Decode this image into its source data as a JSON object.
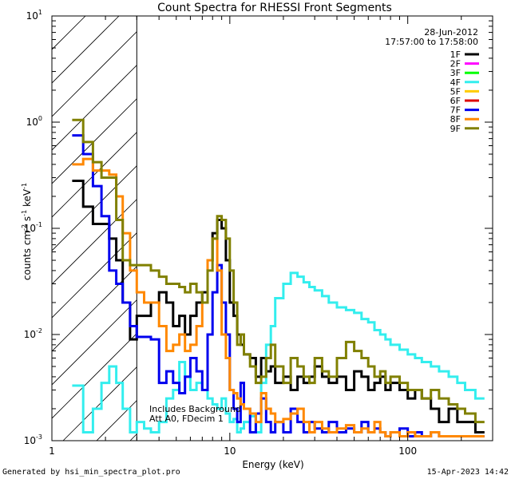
{
  "chart_data": {
    "type": "line",
    "title": "Count Spectra for RHESSI Front Segments",
    "xlabel": "Energy (keV)",
    "ylabel_parts": [
      "counts cm",
      "-2",
      " s",
      "-1",
      " keV",
      "-1"
    ],
    "xscale": "log",
    "yscale": "log",
    "xlim": [
      1,
      300
    ],
    "ylim": [
      0.001,
      10
    ],
    "x_tick_labels": [
      "1",
      "10",
      "100"
    ],
    "y_tick_labels": [
      {
        "base": "10",
        "exp": "-3"
      },
      {
        "base": "10",
        "exp": "-2"
      },
      {
        "base": "10",
        "exp": "-1"
      },
      {
        "base": "10",
        "exp": "0"
      },
      {
        "base": "10",
        "exp": "1"
      }
    ],
    "date": "28-Jun-2012",
    "time_range": "17:57:00 to 17:58:00",
    "hatched_region_below_keV": 3,
    "annotations": [
      "Includes Background",
      "Att A0, FDecim 1"
    ],
    "edges": [
      1.3,
      1.5,
      1.7,
      1.9,
      2.1,
      2.3,
      2.5,
      2.75,
      3.0,
      3.3,
      3.6,
      4.0,
      4.4,
      4.8,
      5.2,
      5.6,
      6.0,
      6.5,
      7.0,
      7.5,
      8.0,
      8.5,
      9.0,
      9.5,
      10.0,
      10.5,
      11.0,
      11.5,
      12.0,
      13,
      14,
      15,
      16,
      17,
      18,
      20,
      22,
      24,
      26,
      28,
      30,
      33,
      36,
      40,
      45,
      50,
      55,
      60,
      65,
      70,
      75,
      80,
      90,
      100,
      110,
      120,
      135,
      150,
      170,
      190,
      210,
      240,
      270,
      300
    ],
    "series": [
      {
        "name": "1F",
        "color": "#000000",
        "values": [
          0.28,
          0.16,
          0.11,
          0.11,
          0.08,
          0.05,
          0.02,
          0.009,
          0.015,
          0.015,
          0.02,
          0.025,
          0.02,
          0.012,
          0.015,
          0.01,
          0.015,
          0.02,
          0.025,
          0.05,
          0.09,
          0.12,
          0.1,
          0.05,
          0.02,
          0.015,
          0.01,
          0.008,
          0.0065,
          0.006,
          0.004,
          0.006,
          0.0045,
          0.005,
          0.0035,
          0.004,
          0.003,
          0.004,
          0.0035,
          0.004,
          0.005,
          0.004,
          0.0035,
          0.004,
          0.003,
          0.0045,
          0.004,
          0.003,
          0.0035,
          0.004,
          0.003,
          0.0035,
          0.003,
          0.0025,
          0.003,
          0.0025,
          0.002,
          0.0015,
          0.002,
          0.0015,
          0.0015,
          0.0012
        ]
      },
      {
        "name": "2F",
        "color": "#ff00ff",
        "values": []
      },
      {
        "name": "3F",
        "color": "#00ff00",
        "values": []
      },
      {
        "name": "4F",
        "color": "#33eeee",
        "values": [
          0.0033,
          0.0012,
          0.002,
          0.0035,
          0.005,
          0.0035,
          0.002,
          0.0012,
          0.0015,
          0.0013,
          0.0012,
          0.0015,
          0.0025,
          0.003,
          0.0055,
          0.004,
          0.003,
          0.0035,
          0.003,
          0.0025,
          0.0022,
          0.002,
          0.0025,
          0.0018,
          0.0015,
          0.0016,
          0.0012,
          0.0013,
          0.0015,
          0.0017,
          0.0012,
          0.0035,
          0.008,
          0.012,
          0.022,
          0.03,
          0.038,
          0.035,
          0.031,
          0.028,
          0.026,
          0.023,
          0.02,
          0.018,
          0.017,
          0.016,
          0.014,
          0.013,
          0.011,
          0.01,
          0.009,
          0.008,
          0.0072,
          0.0065,
          0.006,
          0.0055,
          0.005,
          0.0045,
          0.004,
          0.0035,
          0.003,
          0.0025
        ]
      },
      {
        "name": "5F",
        "color": "#ffcc00",
        "values": []
      },
      {
        "name": "6F",
        "color": "#dd0000",
        "values": []
      },
      {
        "name": "7F",
        "color": "#0000ee",
        "values": [
          0.75,
          0.5,
          0.25,
          0.13,
          0.04,
          0.03,
          0.02,
          0.012,
          0.0095,
          0.0095,
          0.009,
          0.0035,
          0.0045,
          0.0035,
          0.0028,
          0.004,
          0.006,
          0.0045,
          0.003,
          0.01,
          0.025,
          0.045,
          0.02,
          0.01,
          0.003,
          0.002,
          0.0015,
          0.0035,
          0.002,
          0.0012,
          0.0018,
          0.0025,
          0.0015,
          0.0012,
          0.0015,
          0.0012,
          0.002,
          0.0015,
          0.0012,
          0.0015,
          0.0013,
          0.0012,
          0.0015,
          0.0012,
          0.0013,
          0.0012,
          0.0015,
          0.0012,
          0.0013,
          0.0012,
          0.0011,
          0.0012,
          0.0013,
          0.0011,
          0.0012,
          0.0011,
          0.0012,
          0.0011,
          0.0011,
          0.0011,
          0.0011,
          0.0011
        ]
      },
      {
        "name": "8F",
        "color": "#ff8800",
        "values": [
          0.4,
          0.45,
          0.35,
          0.35,
          0.32,
          0.2,
          0.09,
          0.04,
          0.025,
          0.02,
          0.02,
          0.012,
          0.007,
          0.008,
          0.01,
          0.007,
          0.008,
          0.012,
          0.02,
          0.05,
          0.08,
          0.04,
          0.01,
          0.006,
          0.003,
          0.0028,
          0.0025,
          0.0022,
          0.002,
          0.0018,
          0.0015,
          0.0028,
          0.002,
          0.0018,
          0.0015,
          0.0016,
          0.0018,
          0.002,
          0.0015,
          0.0012,
          0.0015,
          0.0013,
          0.0012,
          0.0013,
          0.0014,
          0.0012,
          0.0013,
          0.0012,
          0.0015,
          0.0012,
          0.0011,
          0.0012,
          0.0011,
          0.0012,
          0.0011,
          0.0011,
          0.0012,
          0.0011,
          0.0011,
          0.0011,
          0.0011,
          0.0011
        ]
      },
      {
        "name": "9F",
        "color": "#808000",
        "values": [
          1.05,
          0.65,
          0.42,
          0.3,
          0.3,
          0.12,
          0.05,
          0.045,
          0.045,
          0.045,
          0.04,
          0.035,
          0.03,
          0.03,
          0.028,
          0.025,
          0.03,
          0.025,
          0.02,
          0.04,
          0.08,
          0.13,
          0.12,
          0.08,
          0.04,
          0.02,
          0.008,
          0.01,
          0.0065,
          0.005,
          0.0035,
          0.004,
          0.006,
          0.008,
          0.005,
          0.0035,
          0.006,
          0.005,
          0.004,
          0.0035,
          0.006,
          0.0045,
          0.004,
          0.006,
          0.0085,
          0.007,
          0.006,
          0.005,
          0.004,
          0.0045,
          0.0035,
          0.004,
          0.0035,
          0.003,
          0.003,
          0.0025,
          0.003,
          0.0025,
          0.0022,
          0.002,
          0.0018,
          0.0015
        ]
      }
    ]
  },
  "footer": {
    "left": "Generated by hsi_min_spectra_plot.pro",
    "right": "15-Apr-2023 14:42"
  },
  "colors": {
    "background": "#ffffff",
    "axes": "#000000"
  }
}
